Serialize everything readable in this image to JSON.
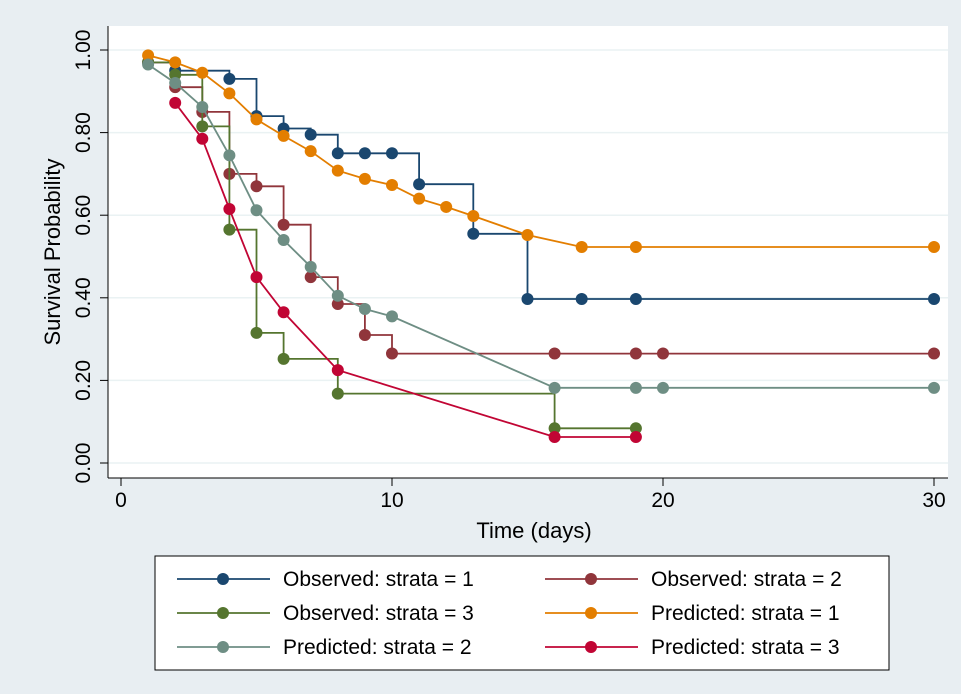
{
  "chart_data": {
    "type": "line",
    "xlabel": "Time (days)",
    "ylabel": "Survival Probability",
    "xlim": [
      0,
      30
    ],
    "ylim": [
      0,
      1
    ],
    "x_ticks": [
      {
        "value": 0,
        "label": "0"
      },
      {
        "value": 10,
        "label": "10"
      },
      {
        "value": 20,
        "label": "20"
      },
      {
        "value": 30,
        "label": "30"
      }
    ],
    "y_ticks": [
      {
        "value": 0,
        "label": "0.00"
      },
      {
        "value": 0.2,
        "label": "0.20"
      },
      {
        "value": 0.4,
        "label": "0.40"
      },
      {
        "value": 0.6,
        "label": "0.60"
      },
      {
        "value": 0.8,
        "label": "0.80"
      },
      {
        "value": 1.0,
        "label": "1.00"
      }
    ],
    "grid": true,
    "legend_position": "bottom",
    "series": [
      {
        "name": "Observed: strata = 1",
        "style": "step",
        "color": "#1a476f",
        "x": [
          1,
          2,
          4,
          5,
          6,
          7,
          8,
          9,
          10,
          11,
          13,
          15,
          17,
          19,
          30
        ],
        "y": [
          0.97,
          0.95,
          0.93,
          0.84,
          0.81,
          0.795,
          0.75,
          0.75,
          0.75,
          0.675,
          0.555,
          0.397,
          0.397,
          0.397,
          0.397
        ]
      },
      {
        "name": "Observed: strata = 2",
        "style": "step",
        "color": "#90353b",
        "x": [
          1,
          2,
          3,
          4,
          5,
          6,
          7,
          8,
          9,
          10,
          16,
          19,
          20,
          30
        ],
        "y": [
          0.97,
          0.91,
          0.85,
          0.7,
          0.67,
          0.577,
          0.45,
          0.385,
          0.31,
          0.265,
          0.265,
          0.265,
          0.265,
          0.265
        ]
      },
      {
        "name": "Observed: strata = 3",
        "style": "step",
        "color": "#55752f",
        "x": [
          1,
          2,
          3,
          4,
          5,
          6,
          8,
          16,
          19
        ],
        "y": [
          0.97,
          0.94,
          0.815,
          0.565,
          0.315,
          0.252,
          0.168,
          0.084,
          0.084
        ]
      },
      {
        "name": "Predicted: strata = 1",
        "style": "line",
        "color": "#e37e00",
        "x": [
          1,
          2,
          3,
          4,
          5,
          6,
          7,
          8,
          9,
          10,
          11,
          12,
          13,
          15,
          17,
          19,
          30
        ],
        "y": [
          0.987,
          0.97,
          0.945,
          0.895,
          0.832,
          0.792,
          0.755,
          0.708,
          0.688,
          0.673,
          0.64,
          0.62,
          0.598,
          0.552,
          0.523,
          0.523,
          0.523
        ]
      },
      {
        "name": "Predicted: strata = 2",
        "style": "line",
        "color": "#6e8e84",
        "x": [
          1,
          2,
          3,
          4,
          5,
          6,
          7,
          8,
          9,
          10,
          16,
          19,
          20,
          30
        ],
        "y": [
          0.965,
          0.92,
          0.862,
          0.745,
          0.612,
          0.54,
          0.475,
          0.405,
          0.373,
          0.355,
          0.182,
          0.182,
          0.182,
          0.182
        ]
      },
      {
        "name": "Predicted: strata = 3",
        "style": "line",
        "color": "#c10534",
        "x": [
          2,
          3,
          4,
          5,
          6,
          8,
          16,
          19
        ],
        "y": [
          0.872,
          0.785,
          0.615,
          0.45,
          0.365,
          0.225,
          0.063,
          0.063
        ]
      }
    ]
  }
}
